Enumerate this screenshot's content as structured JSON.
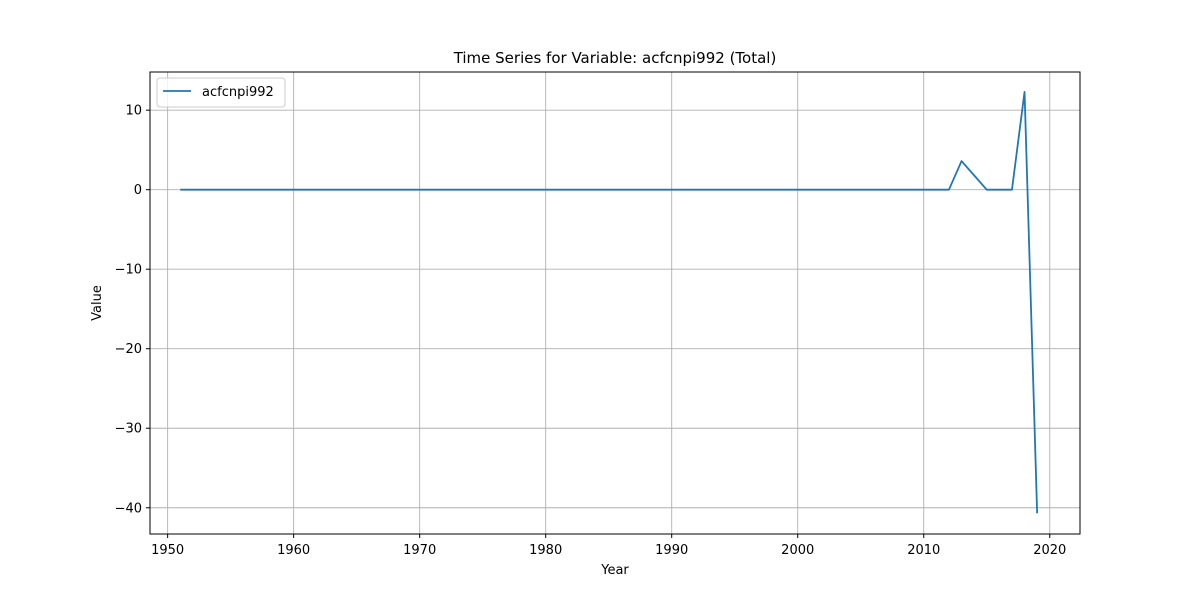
{
  "chart_data": {
    "type": "line",
    "title": "Time Series for Variable: acfcnpi992 (Total)",
    "xlabel": "Year",
    "ylabel": "Value",
    "xlim": [
      1948.6,
      2022.4
    ],
    "ylim": [
      -43.3,
      14.8
    ],
    "xticks": [
      1950,
      1960,
      1970,
      1980,
      1990,
      2000,
      2010,
      2020
    ],
    "yticks": [
      10,
      0,
      -10,
      -20,
      -30,
      -40
    ],
    "grid": true,
    "legend_position": "top-left",
    "series": [
      {
        "name": "acfcnpi992",
        "color": "#1f77b4",
        "x": [
          1951,
          1952,
          1953,
          1954,
          1955,
          1956,
          1957,
          1958,
          1959,
          1960,
          1961,
          1962,
          1963,
          1964,
          1965,
          1966,
          1967,
          1968,
          1969,
          1970,
          1971,
          1972,
          1973,
          1974,
          1975,
          1976,
          1977,
          1978,
          1979,
          1980,
          1981,
          1982,
          1983,
          1984,
          1985,
          1986,
          1987,
          1988,
          1989,
          1990,
          1991,
          1992,
          1993,
          1994,
          1995,
          1996,
          1997,
          1998,
          1999,
          2000,
          2001,
          2002,
          2003,
          2004,
          2005,
          2006,
          2007,
          2008,
          2009,
          2010,
          2011,
          2012,
          2013,
          2014,
          2015,
          2016,
          2017,
          2018,
          2019
        ],
        "y": [
          0,
          0,
          0,
          0,
          0,
          0,
          0,
          0,
          0,
          0,
          0,
          0,
          0,
          0,
          0,
          0,
          0,
          0,
          0,
          0,
          0,
          0,
          0,
          0,
          0,
          0,
          0,
          0,
          0,
          0,
          0,
          0,
          0,
          0,
          0,
          0,
          0,
          0,
          0,
          0,
          0,
          0,
          0,
          0,
          0,
          0,
          0,
          0,
          0,
          0,
          0,
          0,
          0,
          0,
          0,
          0,
          0,
          0,
          0,
          0,
          0,
          0,
          3.6,
          1.8,
          0,
          0,
          0,
          12.3,
          -40.7
        ]
      }
    ]
  }
}
